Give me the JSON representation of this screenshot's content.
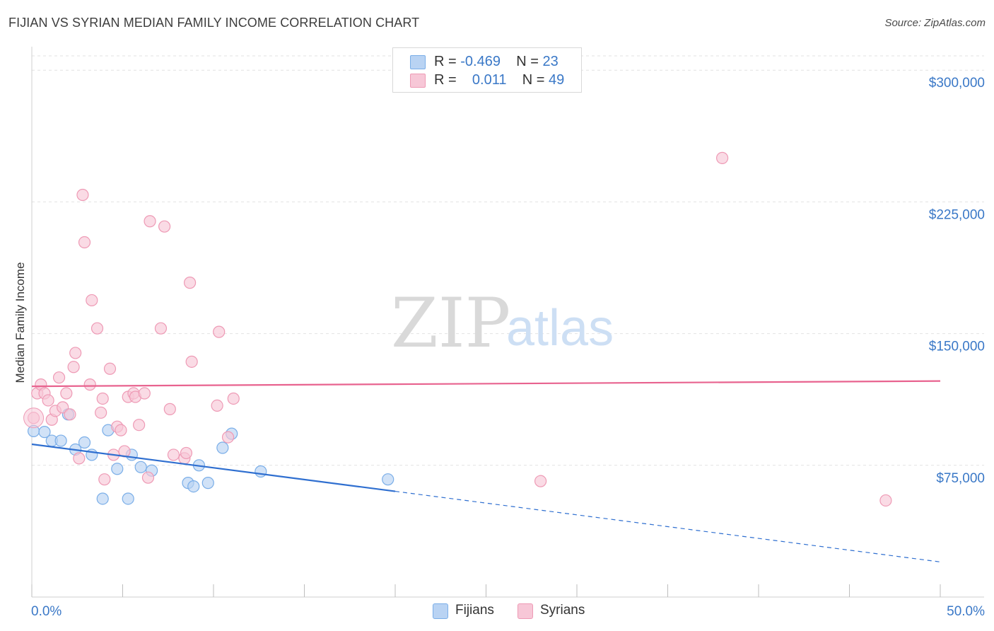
{
  "chart_data": {
    "type": "scatter",
    "title": "FIJIAN VS SYRIAN MEDIAN FAMILY INCOME CORRELATION CHART",
    "source": "Source: ZipAtlas.com",
    "xlabel": "",
    "ylabel": "Median Family Income",
    "xlim": [
      0,
      50
    ],
    "ylim": [
      0,
      315000
    ],
    "x_tick_labels": [
      "0.0%",
      "50.0%"
    ],
    "y_ticks": [
      75000,
      150000,
      225000,
      300000
    ],
    "y_tick_labels": [
      "$75,000",
      "$150,000",
      "$225,000",
      "$300,000"
    ],
    "watermark": [
      "ZIP",
      "atlas"
    ],
    "series": [
      {
        "name": "Fijians",
        "color": "#7aaee8",
        "fill": "#b9d3f3",
        "stats": {
          "r_label": "R =",
          "r": "-0.469",
          "n_label": "N =",
          "n": "23"
        },
        "trend": {
          "x0": 0,
          "y0": 87000,
          "x1": 50,
          "y1": 20000,
          "solid_until": 20
        },
        "points": [
          [
            0.1,
            94500
          ],
          [
            0.7,
            94000
          ],
          [
            1.1,
            89000
          ],
          [
            1.6,
            89000
          ],
          [
            2.0,
            104000
          ],
          [
            2.4,
            84000
          ],
          [
            2.9,
            88000
          ],
          [
            3.3,
            81000
          ],
          [
            3.9,
            56000
          ],
          [
            4.2,
            95000
          ],
          [
            4.7,
            73000
          ],
          [
            5.3,
            56000
          ],
          [
            5.5,
            81000
          ],
          [
            6.0,
            74000
          ],
          [
            6.6,
            72000
          ],
          [
            8.6,
            65000
          ],
          [
            8.9,
            63000
          ],
          [
            9.2,
            75000
          ],
          [
            9.7,
            65000
          ],
          [
            10.5,
            85000
          ],
          [
            11.0,
            93000
          ],
          [
            12.6,
            71500
          ],
          [
            19.6,
            67000
          ]
        ]
      },
      {
        "name": "Syrians",
        "color": "#ee9ab5",
        "fill": "#f7c7d7",
        "stats": {
          "r_label": "R =",
          "r": "0.011",
          "n_label": "N =",
          "n": "49"
        },
        "trend": {
          "x0": 0,
          "y0": 120000,
          "x1": 50,
          "y1": 123000
        },
        "points": [
          [
            0.1,
            102000
          ],
          [
            0.3,
            116000
          ],
          [
            0.5,
            121000
          ],
          [
            0.7,
            116000
          ],
          [
            0.9,
            112000
          ],
          [
            1.1,
            101000
          ],
          [
            1.3,
            106000
          ],
          [
            1.5,
            125000
          ],
          [
            1.7,
            108000
          ],
          [
            1.9,
            116000
          ],
          [
            2.1,
            104000
          ],
          [
            2.3,
            131000
          ],
          [
            2.4,
            139000
          ],
          [
            2.6,
            79000
          ],
          [
            2.8,
            229000
          ],
          [
            2.9,
            202000
          ],
          [
            3.2,
            121000
          ],
          [
            3.3,
            169000
          ],
          [
            3.6,
            153000
          ],
          [
            3.8,
            105000
          ],
          [
            3.9,
            113000
          ],
          [
            4.0,
            67000
          ],
          [
            4.3,
            130000
          ],
          [
            4.5,
            81000
          ],
          [
            4.7,
            97000
          ],
          [
            4.9,
            95000
          ],
          [
            5.1,
            83000
          ],
          [
            5.3,
            114000
          ],
          [
            5.6,
            116000
          ],
          [
            5.7,
            114000
          ],
          [
            5.9,
            98000
          ],
          [
            6.2,
            116000
          ],
          [
            6.4,
            68000
          ],
          [
            6.5,
            214000
          ],
          [
            7.1,
            153000
          ],
          [
            7.3,
            211000
          ],
          [
            7.6,
            107000
          ],
          [
            7.8,
            81000
          ],
          [
            8.4,
            79000
          ],
          [
            8.5,
            82000
          ],
          [
            8.7,
            179000
          ],
          [
            8.8,
            134000
          ],
          [
            10.2,
            109000
          ],
          [
            10.3,
            151000
          ],
          [
            10.8,
            91000
          ],
          [
            11.1,
            113000
          ],
          [
            28.0,
            66000
          ],
          [
            38.0,
            250000
          ],
          [
            47.0,
            55000
          ]
        ]
      }
    ]
  }
}
